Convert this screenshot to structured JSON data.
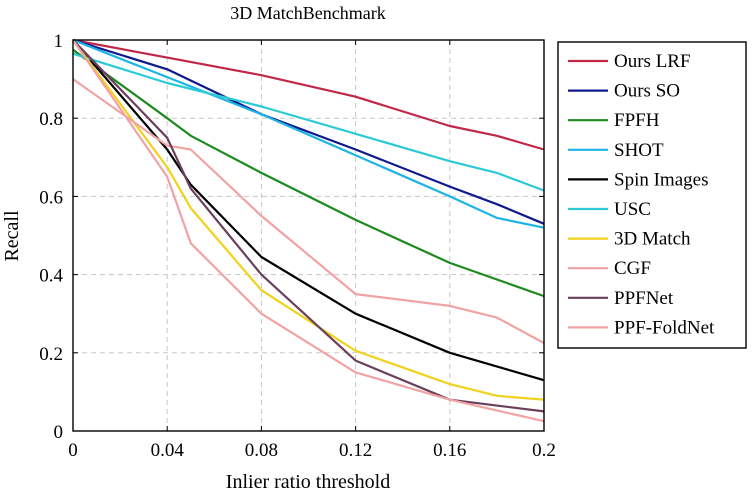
{
  "chart_data": {
    "type": "line",
    "title": "3D MatchBenchmark",
    "xlabel": "Inlier ratio threshold",
    "ylabel": "Recall",
    "xlim": [
      0,
      0.2
    ],
    "ylim": [
      0,
      1
    ],
    "xticks": [
      0,
      0.04,
      0.08,
      0.12,
      0.16,
      0.2
    ],
    "xtick_labels": [
      "0",
      "0.04",
      "0.08",
      "0.12",
      "0.16",
      "0.2"
    ],
    "yticks": [
      0,
      0.2,
      0.4,
      0.6,
      0.8,
      1
    ],
    "ytick_labels": [
      "0",
      "0.2",
      "0.4",
      "0.6",
      "0.8",
      "1"
    ],
    "grid": true,
    "legend_position": "right, outside plot",
    "series": [
      {
        "name": "Ours LRF",
        "color": "#c0284a",
        "x": [
          0,
          0.04,
          0.08,
          0.12,
          0.16,
          0.18,
          0.2
        ],
        "y": [
          1.0,
          0.955,
          0.91,
          0.855,
          0.78,
          0.755,
          0.72
        ]
      },
      {
        "name": "Ours SO",
        "color": "#101a8c",
        "x": [
          0,
          0.04,
          0.08,
          0.12,
          0.16,
          0.18,
          0.2
        ],
        "y": [
          1.0,
          0.925,
          0.81,
          0.72,
          0.625,
          0.58,
          0.53
        ]
      },
      {
        "name": "FPFH",
        "color": "#1e8a1e",
        "x": [
          0,
          0.04,
          0.05,
          0.08,
          0.12,
          0.16,
          0.2
        ],
        "y": [
          0.975,
          0.8,
          0.755,
          0.66,
          0.54,
          0.43,
          0.345
        ]
      },
      {
        "name": "SHOT",
        "color": "#1cb4e6",
        "x": [
          0,
          0.04,
          0.08,
          0.12,
          0.16,
          0.18,
          0.2
        ],
        "y": [
          1.0,
          0.905,
          0.81,
          0.705,
          0.6,
          0.545,
          0.52
        ]
      },
      {
        "name": "Spin Images",
        "color": "#000000",
        "x": [
          0,
          0.04,
          0.05,
          0.08,
          0.12,
          0.16,
          0.2
        ],
        "y": [
          1.0,
          0.72,
          0.63,
          0.445,
          0.3,
          0.2,
          0.13
        ]
      },
      {
        "name": "USC",
        "color": "#2ccad6",
        "x": [
          0,
          0.04,
          0.08,
          0.12,
          0.16,
          0.18,
          0.2
        ],
        "y": [
          0.965,
          0.89,
          0.83,
          0.76,
          0.69,
          0.66,
          0.615
        ]
      },
      {
        "name": "3D Match",
        "color": "#f0d21c",
        "x": [
          0,
          0.04,
          0.05,
          0.08,
          0.12,
          0.16,
          0.18,
          0.2
        ],
        "y": [
          1.0,
          0.675,
          0.57,
          0.36,
          0.205,
          0.12,
          0.09,
          0.08
        ]
      },
      {
        "name": "CGF",
        "color": "#f1a3a3",
        "x": [
          0,
          0.04,
          0.05,
          0.08,
          0.12,
          0.16,
          0.18,
          0.2
        ],
        "y": [
          0.9,
          0.73,
          0.72,
          0.55,
          0.35,
          0.32,
          0.29,
          0.225
        ]
      },
      {
        "name": "PPFNet",
        "color": "#6b3f5c",
        "x": [
          0,
          0.04,
          0.05,
          0.08,
          0.12,
          0.16,
          0.2
        ],
        "y": [
          1.0,
          0.75,
          0.62,
          0.4,
          0.18,
          0.08,
          0.05
        ]
      },
      {
        "name": "PPF-FoldNet",
        "color": "#f1a3a3",
        "x": [
          0,
          0.04,
          0.05,
          0.08,
          0.12,
          0.16,
          0.2
        ],
        "y": [
          1.0,
          0.65,
          0.48,
          0.3,
          0.15,
          0.08,
          0.025
        ]
      }
    ]
  }
}
